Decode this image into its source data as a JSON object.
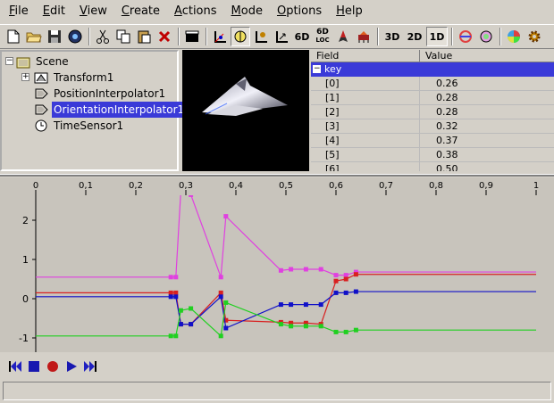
{
  "menu": [
    {
      "label": "File",
      "u": "F",
      "rest": "ile"
    },
    {
      "label": "Edit",
      "u": "E",
      "rest": "dit"
    },
    {
      "label": "View",
      "u": "V",
      "rest": "iew"
    },
    {
      "label": "Create",
      "u": "C",
      "rest": "reate"
    },
    {
      "label": "Actions",
      "u": "A",
      "rest": "ctions"
    },
    {
      "label": "Mode",
      "u": "M",
      "rest": "ode"
    },
    {
      "label": "Options",
      "u": "O",
      "rest": "ptions"
    },
    {
      "label": "Help",
      "u": "H",
      "rest": "elp"
    }
  ],
  "toolbar": {
    "btn_6d": "6D",
    "btn_6dloc_top": "6D",
    "btn_6dloc_bottom": "LOC",
    "btn_3d": "3D",
    "btn_2d": "2D",
    "btn_1d": "1D"
  },
  "tree": {
    "scene": "Scene",
    "transform": "Transform1",
    "position_interpolator": "PositionInterpolator1",
    "orientation_interpolator": "OrientationInterpolator1",
    "time_sensor": "TimeSensor1"
  },
  "field_table": {
    "col_field": "Field",
    "col_value": "Value",
    "group_label": "key",
    "rows": [
      {
        "field": "[0]",
        "value": "0.26"
      },
      {
        "field": "[1]",
        "value": "0.28"
      },
      {
        "field": "[2]",
        "value": "0.28"
      },
      {
        "field": "[3]",
        "value": "0.32"
      },
      {
        "field": "[4]",
        "value": "0.37"
      },
      {
        "field": "[5]",
        "value": "0.38"
      },
      {
        "field": "[6]",
        "value": "0.50"
      }
    ]
  },
  "ruler_ticks": [
    "0",
    "0,1",
    "0,2",
    "0,3",
    "0,4",
    "0,5",
    "0,6",
    "0,7",
    "0,8",
    "0,9",
    "1"
  ],
  "y_ticks": [
    "2",
    "1",
    "0",
    "-1"
  ],
  "colors": {
    "magenta": "#e040e0",
    "red": "#d82020",
    "blue": "#1010c8",
    "green": "#20d020",
    "selection": "#3a3ad8"
  },
  "chart_data": {
    "type": "line",
    "x_range": [
      0,
      1
    ],
    "y_ticks": [
      2,
      1,
      0,
      -1
    ],
    "series": [
      {
        "color": "magenta",
        "x": [
          0,
          0.27,
          0.28,
          0.29,
          0.31,
          0.37,
          0.38,
          0.49,
          0.51,
          0.54,
          0.57,
          0.6,
          0.62,
          0.64,
          1
        ],
        "y": [
          0.55,
          0.55,
          0.55,
          2.75,
          2.65,
          0.55,
          2.1,
          0.72,
          0.75,
          0.75,
          0.75,
          0.6,
          0.6,
          0.68,
          0.68
        ]
      },
      {
        "color": "red",
        "x": [
          0,
          0.27,
          0.28,
          0.29,
          0.31,
          0.37,
          0.38,
          0.49,
          0.51,
          0.54,
          0.57,
          0.6,
          0.62,
          0.64,
          1
        ],
        "y": [
          0.15,
          0.15,
          0.15,
          -0.65,
          -0.65,
          0.15,
          -0.55,
          -0.6,
          -0.62,
          -0.62,
          -0.65,
          0.45,
          0.5,
          0.62,
          0.62
        ]
      },
      {
        "color": "blue",
        "x": [
          0,
          0.27,
          0.28,
          0.29,
          0.31,
          0.37,
          0.38,
          0.49,
          0.51,
          0.54,
          0.57,
          0.6,
          0.62,
          0.64,
          1
        ],
        "y": [
          0.05,
          0.05,
          0.05,
          -0.65,
          -0.65,
          0.05,
          -0.75,
          -0.15,
          -0.15,
          -0.15,
          -0.15,
          0.15,
          0.15,
          0.18,
          0.18
        ]
      },
      {
        "color": "green",
        "x": [
          0,
          0.27,
          0.28,
          0.29,
          0.31,
          0.37,
          0.38,
          0.49,
          0.51,
          0.54,
          0.57,
          0.6,
          0.62,
          0.64,
          1
        ],
        "y": [
          -0.95,
          -0.95,
          -0.95,
          -0.3,
          -0.25,
          -0.95,
          -0.1,
          -0.65,
          -0.7,
          -0.7,
          -0.7,
          -0.85,
          -0.85,
          -0.8,
          -0.8
        ]
      }
    ]
  }
}
